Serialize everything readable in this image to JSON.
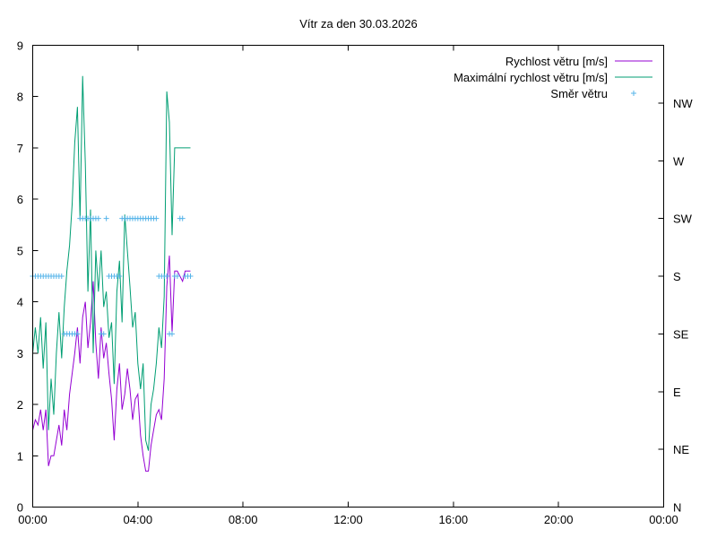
{
  "chart_data": {
    "type": "line",
    "title": "Vítr za den 30.03.2026",
    "xlabel": "",
    "ylabel": "",
    "x_unit": "hours",
    "xlim": [
      0,
      24
    ],
    "ylim": [
      0,
      9
    ],
    "x_ticks": [
      {
        "value": 0,
        "label": "00:00"
      },
      {
        "value": 4,
        "label": "04:00"
      },
      {
        "value": 8,
        "label": "08:00"
      },
      {
        "value": 12,
        "label": "12:00"
      },
      {
        "value": 16,
        "label": "16:00"
      },
      {
        "value": 20,
        "label": "20:00"
      },
      {
        "value": 24,
        "label": "00:00"
      }
    ],
    "y_ticks": [
      0,
      1,
      2,
      3,
      4,
      5,
      6,
      7,
      8,
      9
    ],
    "y2_ticks": [
      {
        "value": 0,
        "label": "N"
      },
      {
        "value": 1.125,
        "label": "NE"
      },
      {
        "value": 2.25,
        "label": "E"
      },
      {
        "value": 3.375,
        "label": "SE"
      },
      {
        "value": 4.5,
        "label": "S"
      },
      {
        "value": 5.625,
        "label": "SW"
      },
      {
        "value": 6.75,
        "label": "W"
      },
      {
        "value": 7.875,
        "label": "NW"
      }
    ],
    "grid": false,
    "legend_position": "top-right",
    "series": [
      {
        "name": "Rychlost větru [m/s]",
        "style": "line",
        "color": "#9400d3",
        "x": [
          0,
          0.1,
          0.2,
          0.3,
          0.4,
          0.5,
          0.6,
          0.7,
          0.8,
          0.9,
          1.0,
          1.1,
          1.2,
          1.3,
          1.4,
          1.5,
          1.6,
          1.7,
          1.8,
          1.9,
          2.0,
          2.1,
          2.2,
          2.3,
          2.4,
          2.5,
          2.6,
          2.7,
          2.8,
          2.9,
          3.0,
          3.1,
          3.2,
          3.3,
          3.4,
          3.5,
          3.6,
          3.7,
          3.8,
          3.9,
          4.0,
          4.1,
          4.2,
          4.3,
          4.4,
          4.5,
          4.6,
          4.7,
          4.8,
          4.9,
          5.0,
          5.1,
          5.2,
          5.3,
          5.4,
          5.5,
          5.6,
          5.7,
          5.8,
          5.9,
          6.0
        ],
        "y": [
          1.5,
          1.7,
          1.6,
          1.9,
          1.5,
          1.9,
          0.8,
          1.0,
          1.0,
          1.3,
          1.6,
          1.2,
          1.9,
          1.5,
          2.2,
          2.6,
          3.0,
          3.5,
          2.8,
          3.7,
          4.0,
          3.1,
          3.6,
          4.4,
          3.2,
          2.5,
          3.5,
          2.9,
          3.2,
          2.6,
          2.1,
          1.3,
          2.3,
          2.8,
          1.9,
          2.2,
          2.7,
          2.3,
          1.7,
          2.1,
          2.2,
          1.4,
          1.0,
          0.7,
          0.7,
          1.2,
          1.5,
          1.8,
          1.9,
          1.7,
          2.5,
          4.3,
          4.9,
          3.4,
          4.6,
          4.6,
          4.5,
          4.4,
          4.6,
          4.6,
          4.6
        ]
      },
      {
        "name": "Maximální rychlost větru [m/s]",
        "style": "line",
        "color": "#009e73",
        "x": [
          0,
          0.1,
          0.2,
          0.3,
          0.4,
          0.5,
          0.6,
          0.7,
          0.8,
          0.9,
          1.0,
          1.1,
          1.2,
          1.3,
          1.4,
          1.5,
          1.6,
          1.7,
          1.8,
          1.9,
          2.0,
          2.1,
          2.2,
          2.3,
          2.4,
          2.5,
          2.6,
          2.7,
          2.8,
          2.9,
          3.0,
          3.1,
          3.2,
          3.3,
          3.4,
          3.5,
          3.6,
          3.7,
          3.8,
          3.9,
          4.0,
          4.1,
          4.2,
          4.3,
          4.4,
          4.5,
          4.6,
          4.7,
          4.8,
          4.9,
          5.0,
          5.1,
          5.2,
          5.3,
          5.4,
          5.5,
          5.6,
          5.7,
          5.8,
          5.9,
          6.0
        ],
        "y": [
          3.0,
          3.5,
          3.0,
          3.7,
          2.7,
          3.6,
          1.5,
          2.5,
          1.8,
          3.0,
          3.8,
          2.9,
          3.9,
          4.6,
          5.1,
          5.9,
          7.1,
          7.8,
          5.6,
          8.4,
          6.7,
          4.2,
          5.8,
          3.0,
          5.0,
          4.2,
          5.0,
          3.9,
          4.2,
          3.3,
          3.6,
          2.4,
          4.2,
          4.8,
          3.6,
          5.7,
          5.0,
          4.3,
          3.5,
          3.8,
          2.8,
          2.3,
          2.8,
          1.3,
          1.1,
          2.0,
          2.3,
          2.8,
          3.5,
          3.1,
          4.1,
          8.1,
          7.5,
          5.3,
          7.0,
          7.0,
          7.0,
          7.0,
          7.0,
          7.0,
          7.0
        ]
      },
      {
        "name": "Směr větru",
        "style": "points",
        "axis": "y2",
        "color": "#56b4e9",
        "x": [
          0.0,
          0.1,
          0.2,
          0.3,
          0.4,
          0.5,
          0.6,
          0.7,
          0.8,
          0.9,
          1.0,
          1.1,
          1.2,
          1.3,
          1.4,
          1.5,
          1.6,
          1.7,
          1.8,
          1.9,
          2.0,
          2.1,
          2.2,
          2.3,
          2.4,
          2.5,
          2.6,
          2.7,
          2.8,
          2.9,
          3.0,
          3.1,
          3.2,
          3.3,
          3.4,
          3.5,
          3.6,
          3.7,
          3.8,
          3.9,
          4.0,
          4.1,
          4.2,
          4.3,
          4.4,
          4.5,
          4.6,
          4.7,
          4.8,
          4.9,
          5.0,
          5.1,
          5.2,
          5.3,
          5.4,
          5.5,
          5.6,
          5.7,
          5.8,
          5.9,
          6.0
        ],
        "y": [
          4.5,
          4.5,
          4.5,
          4.5,
          4.5,
          4.5,
          4.5,
          4.5,
          4.5,
          4.5,
          4.5,
          4.5,
          3.375,
          3.375,
          3.375,
          3.375,
          3.375,
          3.375,
          5.625,
          5.625,
          5.625,
          5.625,
          5.625,
          5.625,
          5.625,
          5.625,
          3.375,
          3.375,
          5.625,
          4.5,
          4.5,
          4.5,
          4.5,
          4.5,
          5.625,
          5.625,
          5.625,
          5.625,
          5.625,
          5.625,
          5.625,
          5.625,
          5.625,
          5.625,
          5.625,
          5.625,
          5.625,
          5.625,
          4.5,
          4.5,
          4.5,
          4.5,
          3.375,
          3.375,
          4.5,
          4.5,
          5.625,
          5.625,
          4.5,
          4.5,
          4.5
        ]
      }
    ]
  }
}
